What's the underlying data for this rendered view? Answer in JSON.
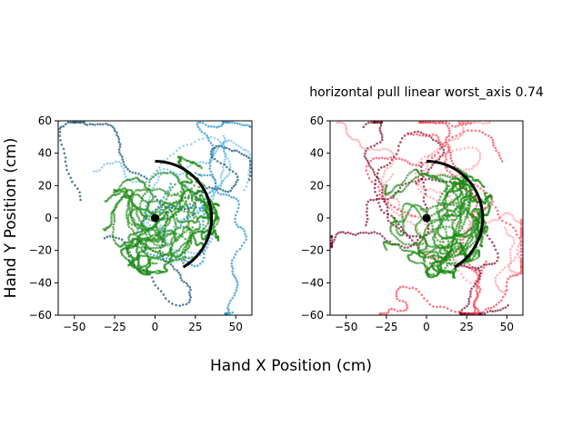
{
  "figure": {
    "xlabel": "Hand X Position (cm)",
    "ylabel": "Hand Y Position (cm)"
  },
  "chart_data": [
    {
      "type": "scatter",
      "title": "",
      "xlim": [
        -60,
        60
      ],
      "ylim": [
        -60,
        60
      ],
      "xticks": [
        -50,
        -25,
        0,
        25,
        50
      ],
      "yticks": [
        -60,
        -40,
        -20,
        0,
        20,
        40,
        60
      ],
      "grid": false,
      "legend": "none",
      "colors": {
        "trajectory_light": "#3fa9e6",
        "trajectory_dark": "#0a4a6e",
        "trajectory_mid": "#1f8fd0",
        "green_trajectories": "#1a8a12",
        "arc": "#000000",
        "start_marker": "#000000"
      },
      "arc": {
        "radius": 35,
        "start_deg": -60,
        "end_deg": 90
      },
      "start_point": {
        "x": 0,
        "y": 0
      }
    },
    {
      "type": "scatter",
      "title": "horizontal pull linear worst_axis 0.74",
      "xlim": [
        -60,
        60
      ],
      "ylim": [
        -60,
        60
      ],
      "xticks": [
        -50,
        -25,
        0,
        25,
        50
      ],
      "yticks": [
        -60,
        -40,
        -20,
        0,
        20,
        40,
        60
      ],
      "grid": false,
      "legend": "none",
      "colors": {
        "trajectory_light": "#ff7a8a",
        "trajectory_dark": "#7a0a2a",
        "trajectory_mid": "#ff3b4e",
        "green_trajectories": "#1a8a12",
        "arc": "#000000",
        "start_marker": "#000000"
      },
      "arc": {
        "radius": 35,
        "start_deg": -60,
        "end_deg": 90
      },
      "start_point": {
        "x": 0,
        "y": 0
      }
    }
  ]
}
